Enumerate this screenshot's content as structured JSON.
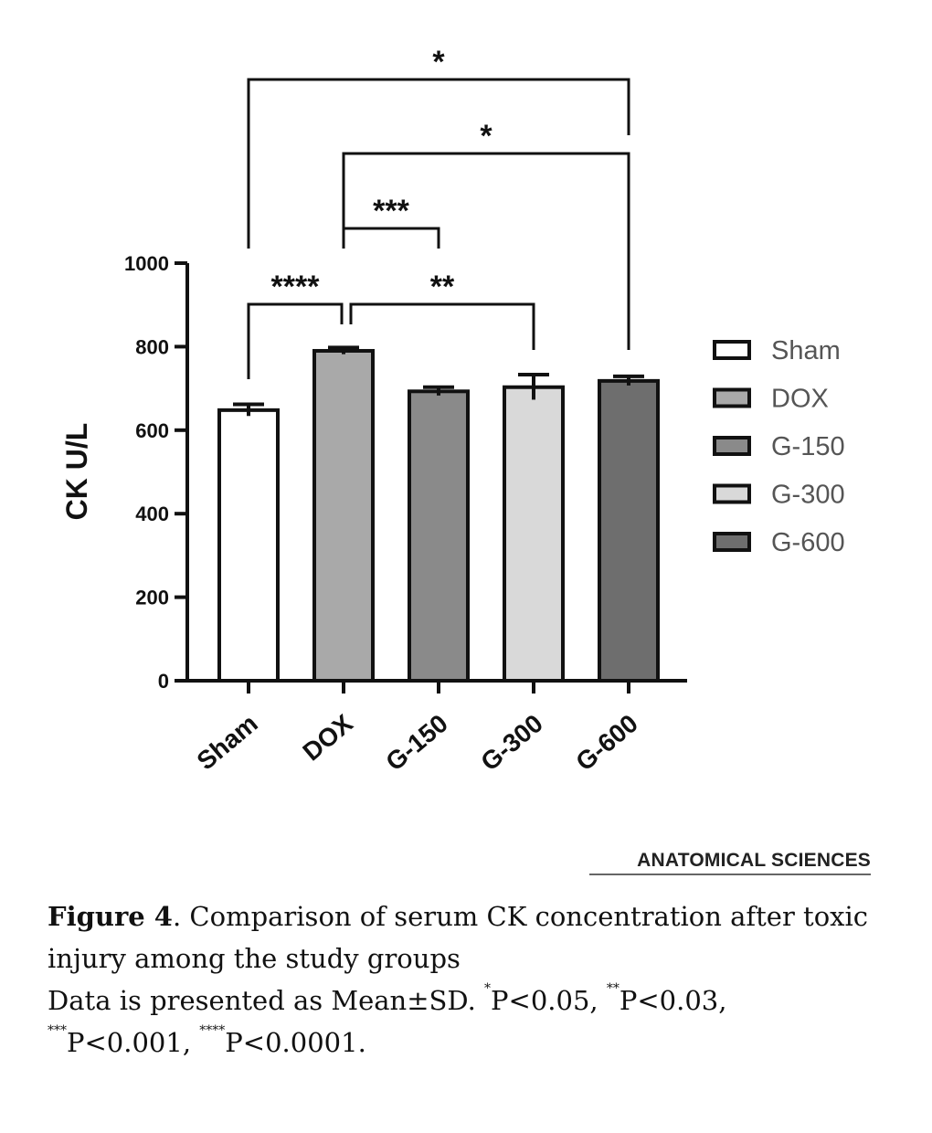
{
  "chart_data": {
    "type": "bar",
    "title": "",
    "xlabel": "",
    "ylabel": "CK U/L",
    "ylim": [
      0,
      1000
    ],
    "yticks": [
      0,
      200,
      400,
      600,
      800,
      1000
    ],
    "categories": [
      "Sham",
      "DOX",
      "G-150",
      "G-300",
      "G-600"
    ],
    "values": [
      648,
      790,
      693,
      703,
      718
    ],
    "errors": [
      14,
      8,
      10,
      30,
      11
    ],
    "colors": [
      "#ffffff",
      "#a9a9a9",
      "#8a8a8a",
      "#d9d9d9",
      "#6e6e6e"
    ],
    "legend": [
      "Sham",
      "DOX",
      "G-150",
      "G-300",
      "G-600"
    ],
    "legend_position": "right",
    "significance": [
      {
        "from": "Sham",
        "to": "DOX",
        "label": "****"
      },
      {
        "from": "DOX",
        "to": "G-300",
        "label": "**"
      },
      {
        "from": "DOX",
        "to": "G-150",
        "label": "***"
      },
      {
        "from": "DOX",
        "to": "G-600",
        "label": "*"
      },
      {
        "from": "Sham",
        "to": "G-600",
        "label": "*"
      }
    ]
  },
  "journal": "ANATOMICAL SCIENCES",
  "caption": {
    "figure_label": "Figure 4",
    "title_text": ". Comparison of serum CK concentration after toxic injury among the study groups",
    "note_lead": "Data is presented as Mean±SD. ",
    "footnotes": [
      {
        "marker": "*",
        "text": "P<0.05, "
      },
      {
        "marker": "**",
        "text": "P<0.03, "
      },
      {
        "marker": "***",
        "text": "P<0.001, "
      },
      {
        "marker": "****",
        "text": "P<0.0001."
      }
    ]
  }
}
